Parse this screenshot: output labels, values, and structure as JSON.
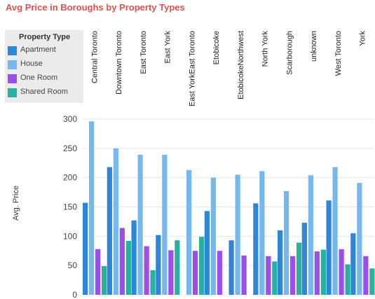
{
  "title": "Avg Price in Boroughs by Property Types",
  "colors": {
    "title": "#d9534f",
    "grid": "#e6e6e6"
  },
  "legend": {
    "title": "Property Type",
    "items": [
      {
        "label": "Apartment",
        "color": "#2f86d8"
      },
      {
        "label": "House",
        "color": "#76b7ec"
      },
      {
        "label": "One Room",
        "color": "#9b4ee8"
      },
      {
        "label": "Shared Room",
        "color": "#28b0a0"
      }
    ]
  },
  "chart_data": {
    "type": "bar",
    "title": "Avg Price in Boroughs by Property Types",
    "ylabel": "Avg. Price",
    "xlabel": "",
    "ylim": [
      0,
      300
    ],
    "yticks": [
      0,
      50,
      100,
      150,
      200,
      250,
      300
    ],
    "categories": [
      "Central Toronto",
      "Downtown Toronto",
      "East Toronto",
      "East York",
      "East YorkEast Toronto",
      "Etobicoke",
      "EtobicokeNorthwest",
      "North York",
      "Scarborough",
      "unknown",
      "West Toronto",
      "York"
    ],
    "series": [
      {
        "name": "Apartment",
        "values": [
          157,
          218,
          127,
          102,
          null,
          143,
          93,
          156,
          110,
          123,
          161,
          105
        ]
      },
      {
        "name": "House",
        "values": [
          296,
          250,
          239,
          239,
          213,
          200,
          205,
          211,
          177,
          204,
          218,
          191
        ]
      },
      {
        "name": "One Room",
        "values": [
          78,
          114,
          83,
          76,
          75,
          75,
          67,
          66,
          66,
          74,
          78,
          66
        ]
      },
      {
        "name": "Shared Room",
        "values": [
          49,
          92,
          42,
          93,
          99,
          null,
          null,
          57,
          89,
          77,
          52,
          45
        ]
      }
    ],
    "grid": true,
    "legend_position": "top-left"
  }
}
